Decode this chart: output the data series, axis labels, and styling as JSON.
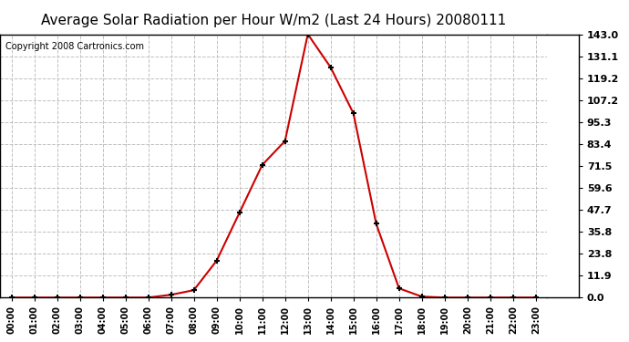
{
  "title": "Average Solar Radiation per Hour W/m2 (Last 24 Hours) 20080111",
  "copyright": "Copyright 2008 Cartronics.com",
  "hours": [
    "00:00",
    "01:00",
    "02:00",
    "03:00",
    "04:00",
    "05:00",
    "06:00",
    "07:00",
    "08:00",
    "09:00",
    "10:00",
    "11:00",
    "12:00",
    "13:00",
    "14:00",
    "15:00",
    "16:00",
    "17:00",
    "18:00",
    "19:00",
    "20:00",
    "21:00",
    "22:00",
    "23:00"
  ],
  "values": [
    0.0,
    0.0,
    0.0,
    0.0,
    0.0,
    0.0,
    0.0,
    1.5,
    4.0,
    20.0,
    46.0,
    72.0,
    85.0,
    143.0,
    125.0,
    100.0,
    40.0,
    5.0,
    0.5,
    0.0,
    0.0,
    0.0,
    0.0,
    0.0
  ],
  "line_color": "#cc0000",
  "marker": "+",
  "marker_color": "#000000",
  "background_color": "#ffffff",
  "plot_background": "#ffffff",
  "grid_color": "#c0c0c0",
  "title_fontsize": 11,
  "copyright_fontsize": 7,
  "yticks": [
    0.0,
    11.9,
    23.8,
    35.8,
    47.7,
    59.6,
    71.5,
    83.4,
    95.3,
    107.2,
    119.2,
    131.1,
    143.0
  ],
  "ymax": 143.0,
  "ymin": 0.0
}
